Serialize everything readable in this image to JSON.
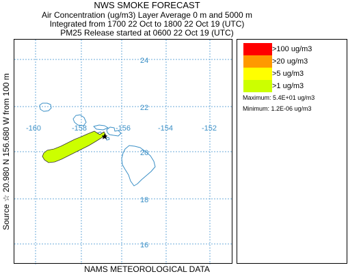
{
  "title": {
    "line1": "NWS SMOKE FORECAST",
    "line2": "Air Concentration (ug/m3) Layer Average    0 m and  5000 m",
    "line3": "Integrated from 1700 22 Oct to 1800 22 Oct 19 (UTC)",
    "line4": "PM25 Release started at 0600 22 Oct 19 (UTC)"
  },
  "side_label": "Source ☆  20.980 N 156.680  W      from  100 m",
  "footer": "NAMS METEOROLOGICAL DATA",
  "map": {
    "lon_ticks": [
      "-160",
      "-158",
      "-156",
      "-154",
      "-152"
    ],
    "lat_ticks": [
      "24",
      "22",
      "20",
      "18",
      "16"
    ],
    "grid_color": "#6aa8d8",
    "coast_color": "#3a8fc6",
    "plume_color": "#ccff00",
    "source_marker": "star-icon"
  },
  "legend": {
    "items": [
      {
        "label": ">100 ug/m3",
        "color": "#ff0000"
      },
      {
        "label": ">20 ug/m3",
        "color": "#ff9900"
      },
      {
        "label": ">5 ug/m3",
        "color": "#ffff00"
      },
      {
        "label": ">1 ug/m3",
        "color": "#ccff00"
      }
    ],
    "maximum": "Maximum: 5.4E+01 ug/m3",
    "minimum": "Minimum: 1.2E-06 ug/m3"
  }
}
